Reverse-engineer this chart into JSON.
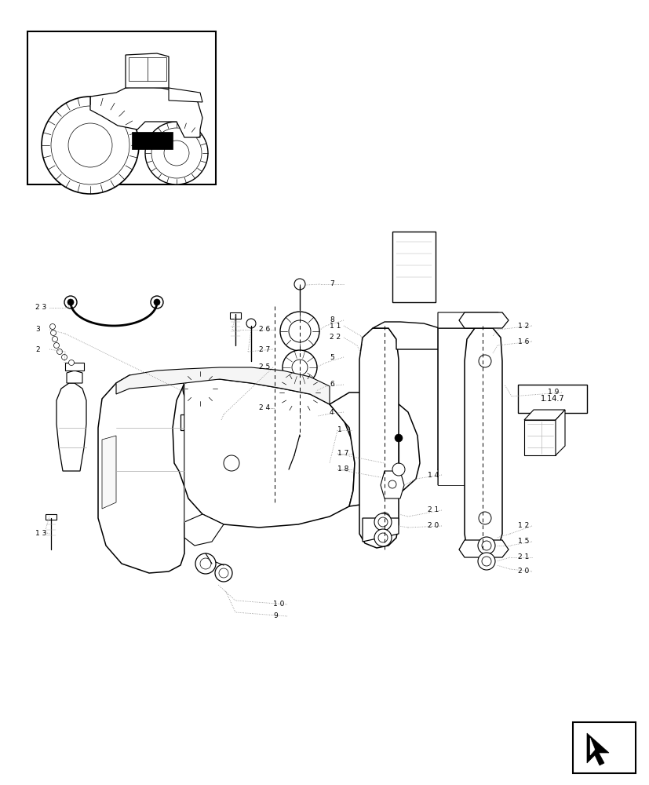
{
  "bg_color": "#ffffff",
  "line_color": "#000000",
  "gray_color": "#aaaaaa",
  "fig_width": 8.28,
  "fig_height": 10.0,
  "dpi": 100
}
